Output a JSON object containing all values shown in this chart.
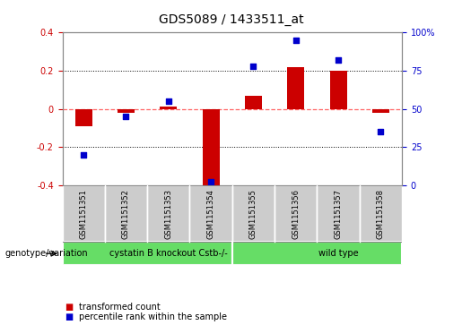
{
  "title": "GDS5089 / 1433511_at",
  "samples": [
    "GSM1151351",
    "GSM1151352",
    "GSM1151353",
    "GSM1151354",
    "GSM1151355",
    "GSM1151356",
    "GSM1151357",
    "GSM1151358"
  ],
  "transformed_count": [
    -0.09,
    -0.02,
    0.01,
    -0.41,
    0.07,
    0.22,
    0.2,
    -0.02
  ],
  "percentile_rank": [
    20,
    45,
    55,
    2,
    78,
    95,
    82,
    35
  ],
  "ylim_left": [
    -0.4,
    0.4
  ],
  "ylim_right": [
    0,
    100
  ],
  "group_boundaries": [
    0,
    4,
    8
  ],
  "group_labels": [
    "cystatin B knockout Cstb-/-",
    "wild type"
  ],
  "group_color": "#66dd66",
  "sample_box_color": "#cccccc",
  "bar_color": "#cc0000",
  "dot_color": "#0000cc",
  "background_color": "#ffffff",
  "zero_line_color": "#ff6666",
  "grid_color": "#000000",
  "genotype_label": "genotype/variation",
  "legend_bar": "transformed count",
  "legend_dot": "percentile rank within the sample",
  "title_fontsize": 10,
  "tick_fontsize": 7,
  "label_fontsize": 7,
  "sample_fontsize": 6
}
